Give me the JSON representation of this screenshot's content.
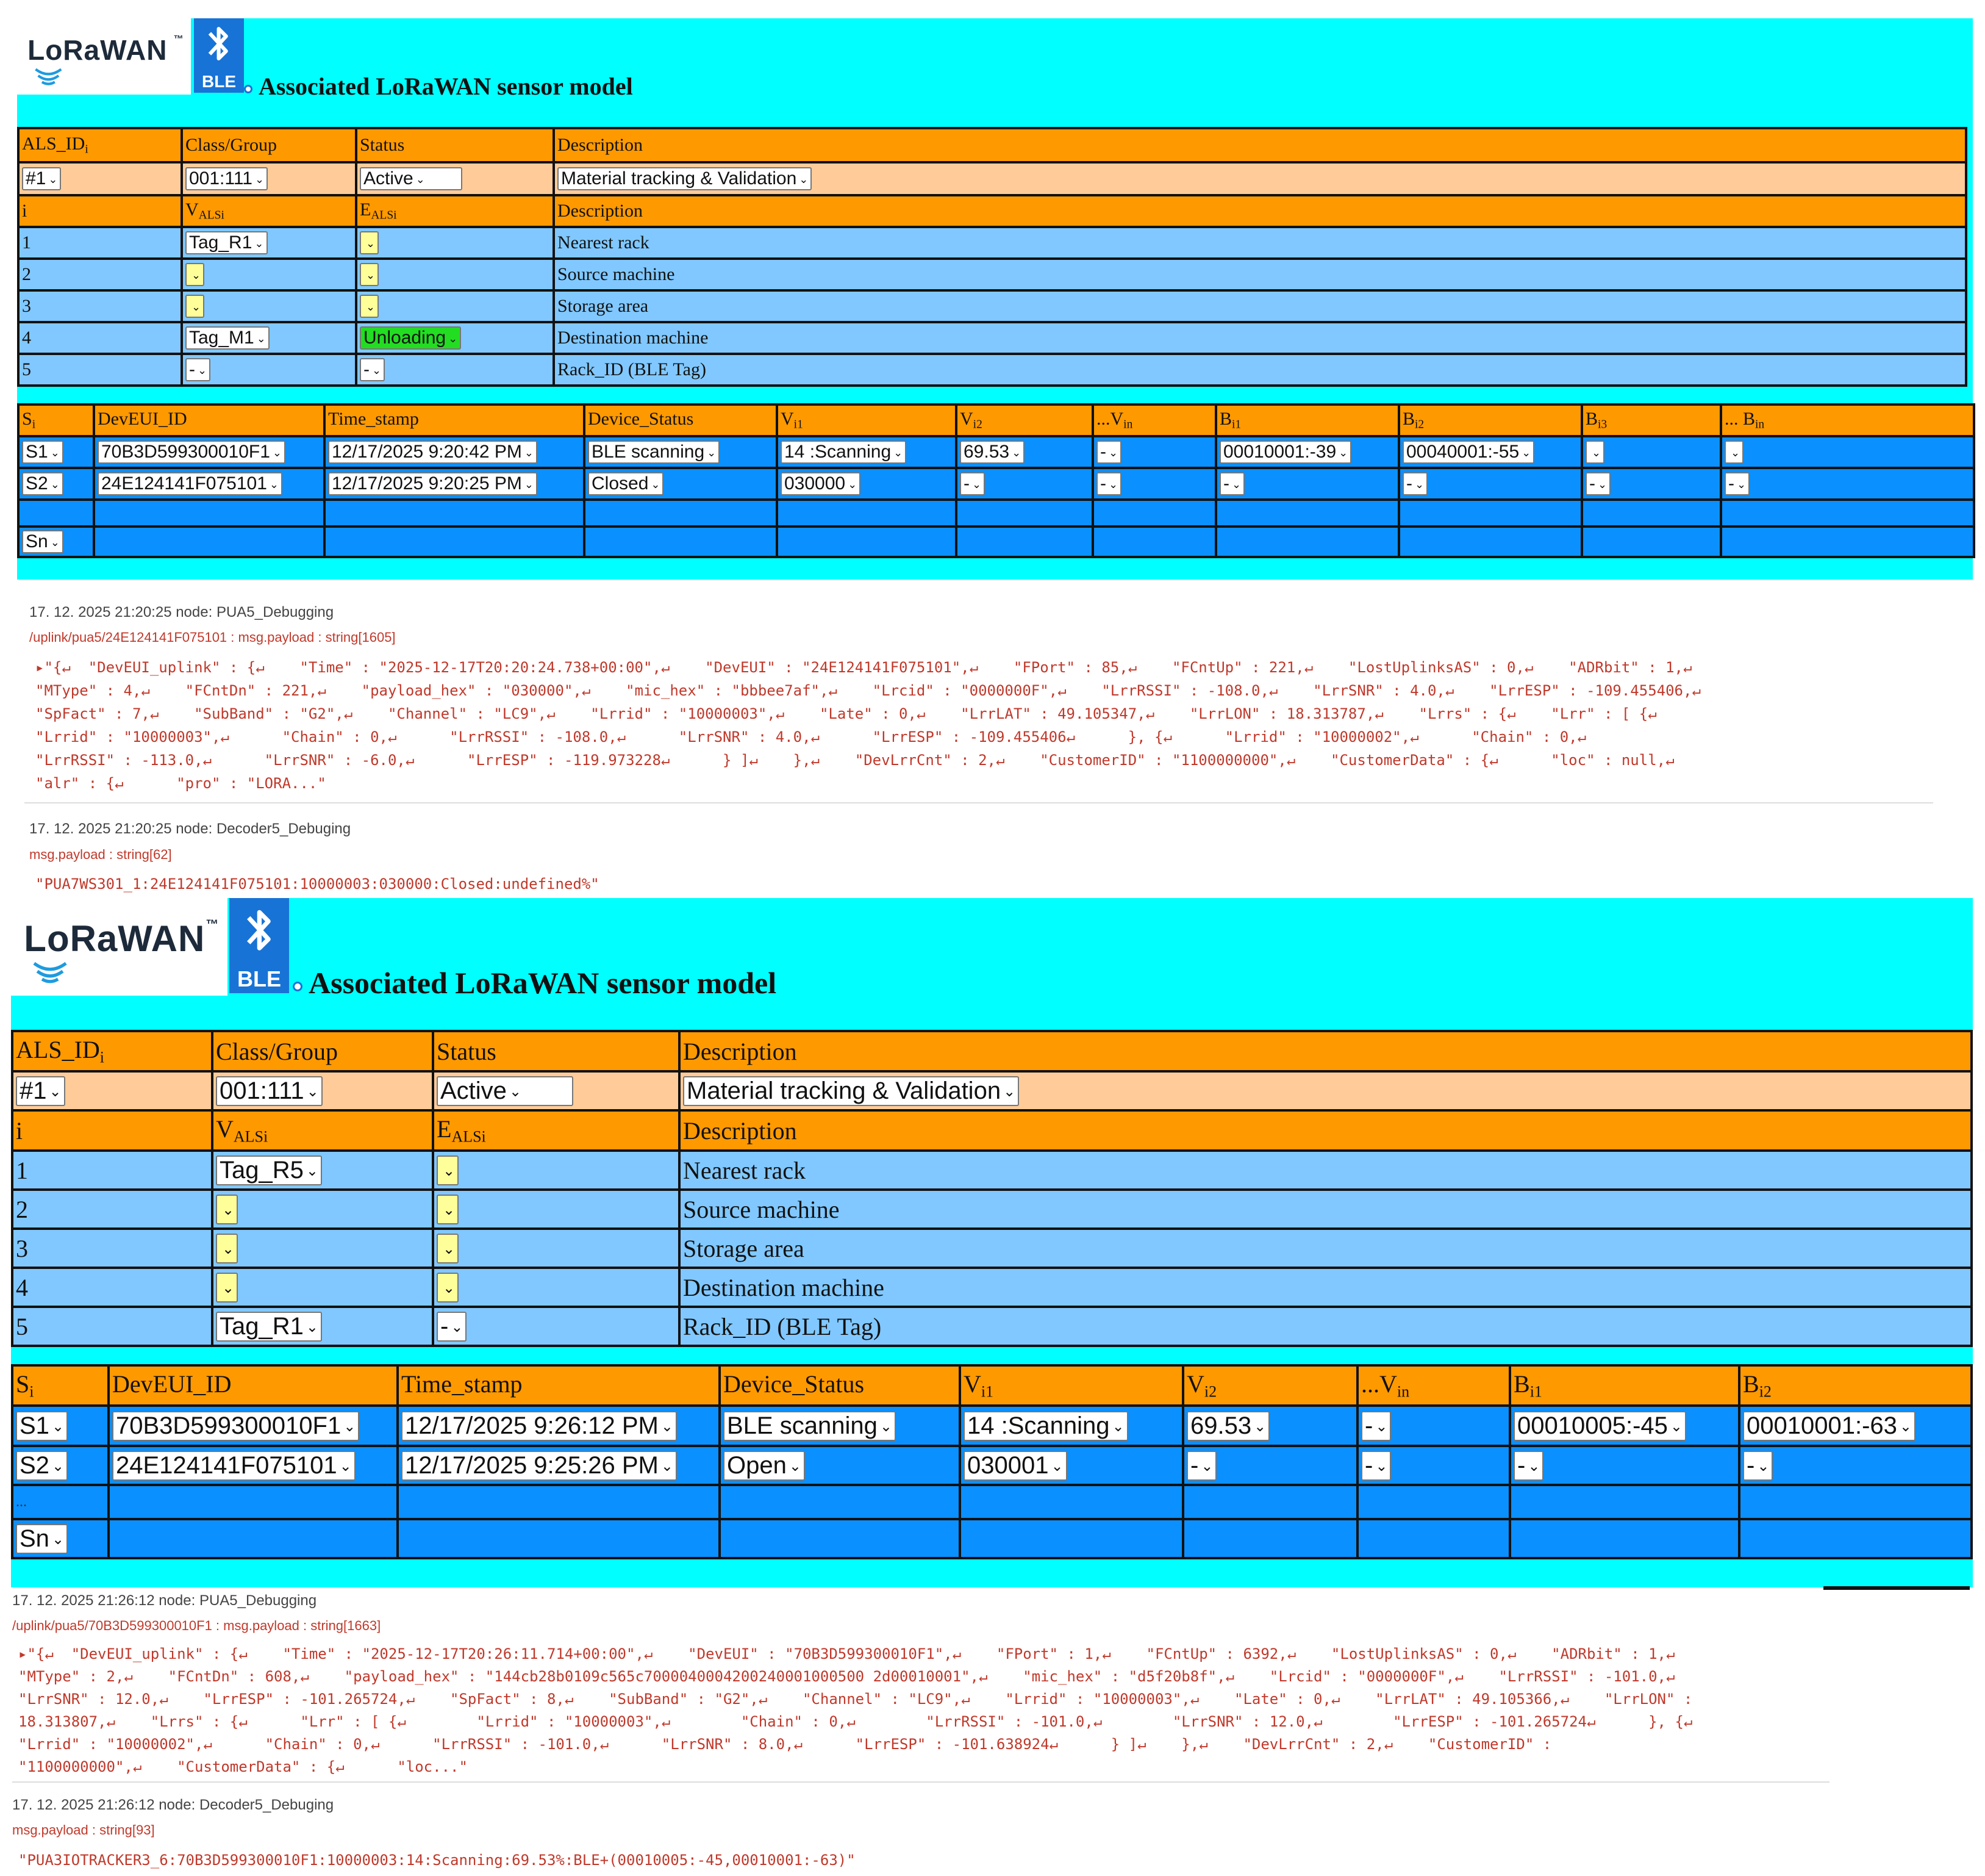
{
  "panels": [
    {
      "logo_text": "LoRaWAN",
      "tm": "™",
      "ble_label": "BLE",
      "title": "Associated LoRaWAN sensor model",
      "als_headers": [
        "ALS_ID",
        "Class/Group",
        "Status",
        "Description"
      ],
      "als_row": {
        "id": "#1",
        "class_group": "001:111",
        "status": "Active",
        "description": "Material tracking & Validation"
      },
      "var_headers": {
        "i": "i",
        "v": "V",
        "v_sub": "ALSi",
        "e": "E",
        "e_sub": "ALSi",
        "desc": "Description"
      },
      "var_rows": [
        {
          "i": "1",
          "v": "Tag_R1",
          "e": "",
          "desc": "Nearest rack"
        },
        {
          "i": "2",
          "v": "",
          "e": "",
          "desc": "Source machine"
        },
        {
          "i": "3",
          "v": "",
          "e": "",
          "desc": "Storage area"
        },
        {
          "i": "4",
          "v": "Tag_M1",
          "e": "Unloading",
          "desc": "Destination machine"
        },
        {
          "i": "5",
          "v": "-",
          "e": "-",
          "desc": "Rack_ID (BLE Tag)"
        }
      ],
      "sensor_headers": [
        "S",
        "DevEUI_ID",
        "Time_stamp",
        "Device_Status",
        "V",
        "V",
        "...V",
        "B",
        "B",
        "B",
        "... B"
      ],
      "sensor_header_subs": [
        "i",
        "",
        "",
        "",
        "i1",
        "i2",
        "in",
        "i1",
        "i2",
        "i3",
        "in"
      ],
      "sensor_rows": [
        [
          "S1",
          "70B3D599300010F1",
          "12/17/2025 9:20:42 PM",
          "BLE scanning",
          "14 :Scanning",
          "69.53",
          "-",
          "00010001:-39",
          "00040001:-55",
          "",
          ""
        ],
        [
          "S2",
          "24E124141F075101",
          "12/17/2025 9:20:25 PM",
          "Closed",
          "030000",
          "-",
          "-",
          "-",
          "-",
          "-",
          "-"
        ],
        [
          "",
          "",
          "",
          "",
          "",
          "",
          "",
          "",
          "",
          "",
          ""
        ],
        [
          "Sn",
          "",
          "",
          "",
          "",
          "",
          "",
          "",
          "",
          "",
          ""
        ]
      ]
    },
    {
      "logo_text": "LoRaWAN",
      "tm": "™",
      "ble_label": "BLE",
      "title": "Associated LoRaWAN sensor model",
      "als_headers": [
        "ALS_ID",
        "Class/Group",
        "Status",
        "Description"
      ],
      "als_row": {
        "id": "#1",
        "class_group": "001:111",
        "status": "Active",
        "description": "Material tracking & Validation"
      },
      "var_headers": {
        "i": "i",
        "v": "V",
        "v_sub": "ALSi",
        "e": "E",
        "e_sub": "ALSi",
        "desc": "Description"
      },
      "var_rows": [
        {
          "i": "1",
          "v": "Tag_R5",
          "e": "",
          "desc": "Nearest rack"
        },
        {
          "i": "2",
          "v": "",
          "e": "",
          "desc": "Source machine"
        },
        {
          "i": "3",
          "v": "",
          "e": "",
          "desc": "Storage area"
        },
        {
          "i": "4",
          "v": "",
          "e": "",
          "desc": "Destination machine"
        },
        {
          "i": "5",
          "v": "Tag_R1",
          "e": "-",
          "desc": "Rack_ID (BLE Tag)"
        }
      ],
      "sensor_headers": [
        "S",
        "DevEUI_ID",
        "Time_stamp",
        "Device_Status",
        "V",
        "V",
        "...V",
        "B",
        "B"
      ],
      "sensor_header_subs": [
        "i",
        "",
        "",
        "",
        "i1",
        "i2",
        "in",
        "i1",
        "i2"
      ],
      "sensor_rows": [
        [
          "S1",
          "70B3D599300010F1",
          "12/17/2025 9:26:12 PM",
          "BLE scanning",
          "14 :Scanning",
          "69.53",
          "-",
          "00010005:-45",
          "00010001:-63"
        ],
        [
          "S2",
          "24E124141F075101",
          "12/17/2025 9:25:26 PM",
          "Open",
          "030001",
          "-",
          "-",
          "-",
          "-"
        ],
        [
          "...",
          "",
          "",
          "",
          "",
          "",
          "",
          "",
          ""
        ],
        [
          "Sn",
          "",
          "",
          "",
          "",
          "",
          "",
          "",
          ""
        ]
      ]
    }
  ],
  "logs": [
    {
      "meta": "17. 12. 2025 21:20:25   node: PUA5_Debugging",
      "path": "/uplink/pua5/24E124141F075101 : msg.payload : string[1605]",
      "lines": [
        "▸\"{↵  \"DevEUI_uplink\" : {↵    \"Time\" : \"2025-12-17T20:20:24.738+00:00\",↵    \"DevEUI\" : \"24E124141F075101\",↵    \"FPort\" : 85,↵    \"FCntUp\" : 221,↵    \"LostUplinksAS\" : 0,↵    \"ADRbit\" : 1,↵",
        "\"MType\" : 4,↵    \"FCntDn\" : 221,↵    \"payload_hex\" : \"030000\",↵    \"mic_hex\" : \"bbbee7af\",↵    \"Lrcid\" : \"0000000F\",↵    \"LrrRSSI\" : -108.0,↵    \"LrrSNR\" : 4.0,↵    \"LrrESP\" : -109.455406,↵",
        "\"SpFact\" : 7,↵    \"SubBand\" : \"G2\",↵    \"Channel\" : \"LC9\",↵    \"Lrrid\" : \"10000003\",↵    \"Late\" : 0,↵    \"LrrLAT\" : 49.105347,↵    \"LrrLON\" : 18.313787,↵    \"Lrrs\" : {↵    \"Lrr\" : [ {↵",
        "\"Lrrid\" : \"10000003\",↵      \"Chain\" : 0,↵      \"LrrRSSI\" : -108.0,↵      \"LrrSNR\" : 4.0,↵      \"LrrESP\" : -109.455406↵      }, {↵      \"Lrrid\" : \"10000002\",↵      \"Chain\" : 0,↵",
        "\"LrrRSSI\" : -113.0,↵      \"LrrSNR\" : -6.0,↵      \"LrrESP\" : -119.973228↵      } ]↵    },↵    \"DevLrrCnt\" : 2,↵    \"CustomerID\" : \"1100000000\",↵    \"CustomerData\" : {↵      \"loc\" : null,↵",
        "\"alr\" : {↵      \"pro\" : \"LORA...\""
      ]
    },
    {
      "meta": "17. 12. 2025 21:20:25   node: Decoder5_Debuging",
      "path": "msg.payload : string[62]",
      "lines": [
        "\"PUA7WS301_1:24E124141F075101:10000003:030000:Closed:undefined%\""
      ]
    },
    {
      "meta": "17. 12. 2025 21:26:12   node: PUA5_Debugging",
      "path": "/uplink/pua5/70B3D599300010F1 : msg.payload : string[1663]",
      "lines": [
        "▸\"{↵  \"DevEUI_uplink\" : {↵    \"Time\" : \"2025-12-17T20:26:11.714+00:00\",↵    \"DevEUI\" : \"70B3D599300010F1\",↵    \"FPort\" : 1,↵    \"FCntUp\" : 6392,↵    \"LostUplinksAS\" : 0,↵    \"ADRbit\" : 1,↵",
        "\"MType\" : 2,↵    \"FCntDn\" : 608,↵    \"payload_hex\" : \"144cb28b0109c565c7000040004200240001000500 2d00010001\",↵    \"mic_hex\" : \"d5f20b8f\",↵    \"Lrcid\" : \"0000000F\",↵    \"LrrRSSI\" : -101.0,↵",
        "\"LrrSNR\" : 12.0,↵    \"LrrESP\" : -101.265724,↵    \"SpFact\" : 8,↵    \"SubBand\" : \"G2\",↵    \"Channel\" : \"LC9\",↵    \"Lrrid\" : \"10000003\",↵    \"Late\" : 0,↵    \"LrrLAT\" : 49.105366,↵    \"LrrLON\" :",
        "18.313807,↵    \"Lrrs\" : {↵      \"Lrr\" : [ {↵        \"Lrrid\" : \"10000003\",↵        \"Chain\" : 0,↵        \"LrrRSSI\" : -101.0,↵        \"LrrSNR\" : 12.0,↵        \"LrrESP\" : -101.265724↵      }, {↵",
        "\"Lrrid\" : \"10000002\",↵      \"Chain\" : 0,↵      \"LrrRSSI\" : -101.0,↵      \"LrrSNR\" : 8.0,↵      \"LrrESP\" : -101.638924↵      } ]↵    },↵    \"DevLrrCnt\" : 2,↵    \"CustomerID\" :",
        "\"1100000000\",↵    \"CustomerData\" : {↵      \"loc...\""
      ]
    },
    {
      "meta": "17. 12. 2025 21:26:12   node: Decoder5_Debuging",
      "path": "msg.payload : string[93]",
      "lines": [
        "\"PUA3IOTRACKER3_6:70B3D599300010F1:10000003:14:Scanning:69.53%:BLE+(00010005:-45,00010001:-63)\""
      ]
    }
  ],
  "colors": {
    "panel_bg": "#00ffff",
    "header": "#ff9900",
    "peach": "#ffcc99",
    "light_blue": "#80c8ff",
    "dark_blue": "#0a90ff",
    "green": "#22dd22",
    "log_red": "#c0392b"
  }
}
